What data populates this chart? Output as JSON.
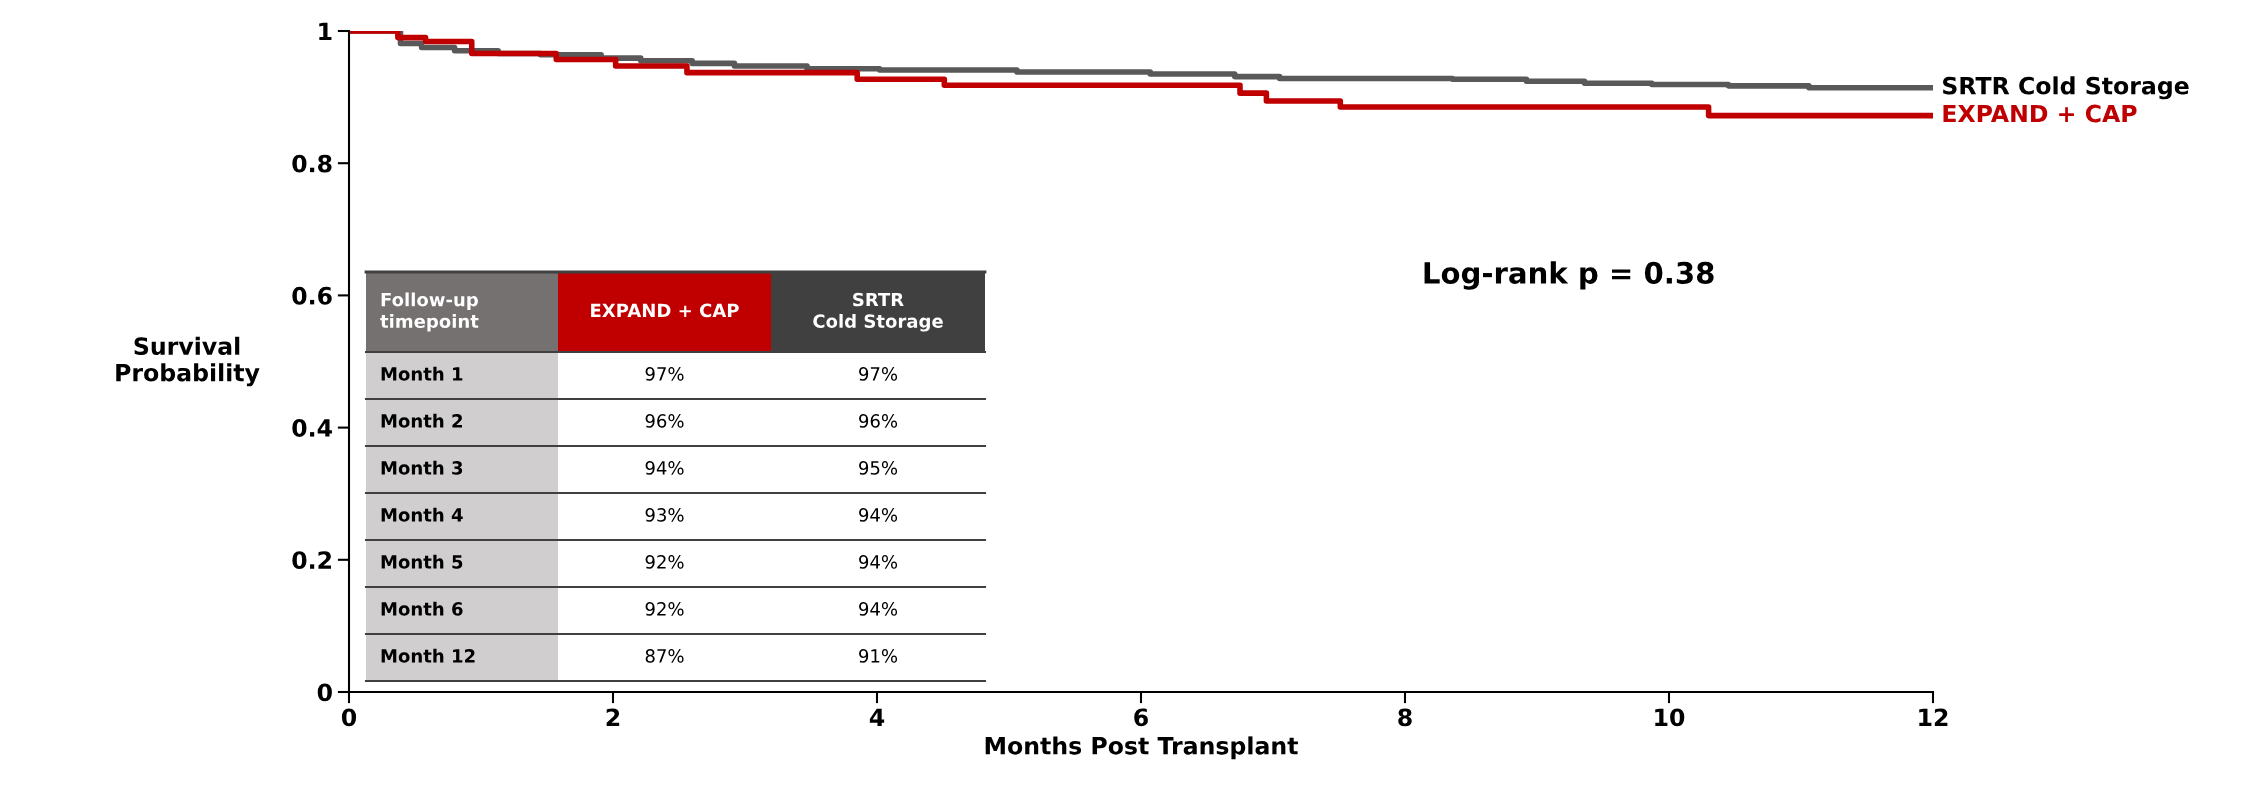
{
  "chart_data": {
    "type": "step",
    "xlabel": "Months Post Transplant",
    "ylabel": "Survival\nProbability",
    "xlim": [
      0,
      12
    ],
    "xticks": [
      0,
      2,
      4,
      6,
      8,
      10,
      12
    ],
    "ylim": [
      0,
      1
    ],
    "yticks": [
      0,
      0.2,
      0.4,
      0.6,
      0.8,
      1
    ],
    "grid": false,
    "legend": false,
    "marker": "none",
    "line_style": "solid",
    "series": [
      {
        "name": "SRTR Cold Storage",
        "color": "#595959",
        "x": [
          0,
          0.39,
          0.55,
          0.8,
          1.13,
          1.45,
          1.91,
          2.21,
          2.6,
          2.92,
          3.47,
          4.02,
          5.06,
          6.07,
          6.71,
          7.05,
          8.36,
          8.92,
          9.36,
          9.87,
          10.45,
          11.06,
          12
        ],
        "values": [
          1.0,
          0.981,
          0.975,
          0.97,
          0.966,
          0.964,
          0.959,
          0.955,
          0.951,
          0.947,
          0.943,
          0.941,
          0.938,
          0.935,
          0.931,
          0.928,
          0.927,
          0.924,
          0.921,
          0.919,
          0.917,
          0.914,
          0.914
        ]
      },
      {
        "name": "EXPAND + CAP",
        "color": "#c00000",
        "x": [
          0,
          0.37,
          0.58,
          0.93,
          1.57,
          2.02,
          2.56,
          3.85,
          4.51,
          6.75,
          6.95,
          7.51,
          10.3,
          12
        ],
        "values": [
          1.0,
          0.99,
          0.984,
          0.966,
          0.957,
          0.947,
          0.937,
          0.927,
          0.918,
          0.906,
          0.894,
          0.885,
          0.872,
          0.872
        ]
      }
    ],
    "annotations": [
      "Log-rank p = 0.38",
      "Follow-up\ntimepoint",
      "EXPAND + CAP",
      "SRTR\nCold Storage",
      "Month 1",
      "97%",
      "97%",
      "Month 2",
      "96%",
      "96%",
      "Month 3",
      "94%",
      "95%",
      "Month 4",
      "93%",
      "94%",
      "Month 5",
      "92%",
      "94%",
      "Month 6",
      "92%",
      "94%",
      "Month 12",
      "87%",
      "91%"
    ]
  }
}
